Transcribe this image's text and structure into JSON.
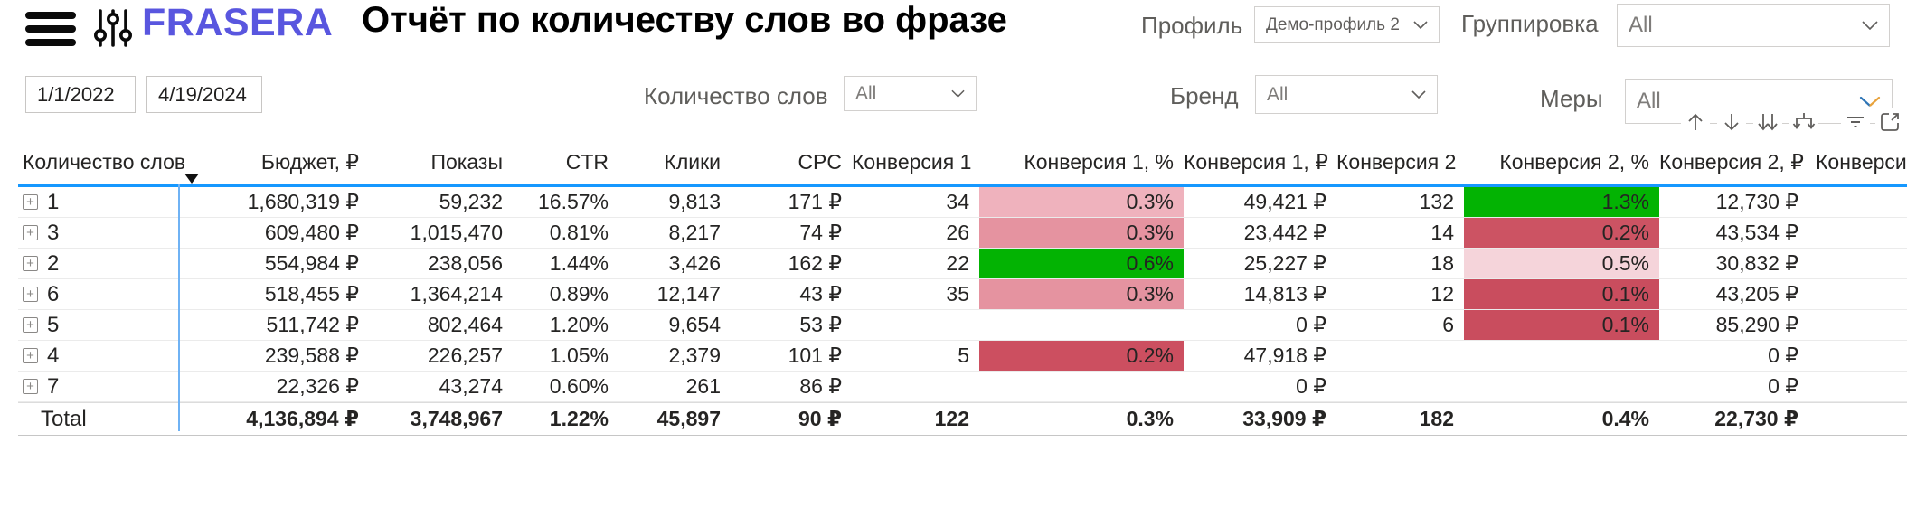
{
  "header": {
    "brand": "FRASERA",
    "title": "Отчёт по количеству слов во фразе",
    "profile": {
      "label": "Профиль",
      "value": "Демо-профиль 2"
    },
    "grouping": {
      "label": "Группировка",
      "value": "All"
    }
  },
  "filters": {
    "date_from": "1/1/2022",
    "date_to": "4/19/2024",
    "word_count": {
      "label": "Количество слов",
      "value": "All"
    },
    "brand": {
      "label": "Бренд",
      "value": "All"
    },
    "measures": {
      "label": "Меры",
      "value": "All"
    }
  },
  "toolbar": {
    "icons": [
      "drill-up",
      "drill-down",
      "expand-all-down",
      "go-to-next-level",
      "filters",
      "focus-mode"
    ]
  },
  "colors": {
    "accent_blue": "#1698FF",
    "brand_purple": "#5956DF",
    "green": "#03B303",
    "pink_light": "#EFB2BD",
    "pink_medium": "#E593A0",
    "red_dark": "#C94D5E"
  },
  "table": {
    "columns": [
      "Количество слов",
      "Бюджет, ₽",
      "Показы",
      "CTR",
      "Клики",
      "CPC",
      "Конверсия 1",
      "Конверсия 1, %",
      "Конверсия 1, ₽",
      "Конверсия 2",
      "Конверсия 2, %",
      "Конверсия 2, ₽",
      "Конверси"
    ],
    "rows": [
      {
        "cells": [
          "1",
          "1,680,319 ₽",
          "59,232",
          "16.57%",
          "9,813",
          "171 ₽",
          "34",
          "0.3%",
          "49,421 ₽",
          "132",
          "1.3%",
          "12,730 ₽",
          ""
        ],
        "bg": {
          "7": "#EFB2BD",
          "10": "#03B303"
        }
      },
      {
        "cells": [
          "3",
          "609,480 ₽",
          "1,015,470",
          "0.81%",
          "8,217",
          "74 ₽",
          "26",
          "0.3%",
          "23,442 ₽",
          "14",
          "0.2%",
          "43,534 ₽",
          ""
        ],
        "bg": {
          "7": "#E593A0",
          "10": "#CC5363"
        }
      },
      {
        "cells": [
          "2",
          "554,984 ₽",
          "238,056",
          "1.44%",
          "3,426",
          "162 ₽",
          "22",
          "0.6%",
          "25,227 ₽",
          "18",
          "0.5%",
          "30,832 ₽",
          ""
        ],
        "bg": {
          "7": "#03B303",
          "10": "#F5D4DA"
        }
      },
      {
        "cells": [
          "6",
          "518,455 ₽",
          "1,364,214",
          "0.89%",
          "12,147",
          "43 ₽",
          "35",
          "0.3%",
          "14,813 ₽",
          "12",
          "0.1%",
          "43,205 ₽",
          ""
        ],
        "bg": {
          "7": "#E593A0",
          "10": "#C94D5E"
        }
      },
      {
        "cells": [
          "5",
          "511,742 ₽",
          "802,464",
          "1.20%",
          "9,654",
          "53 ₽",
          "",
          "",
          "0 ₽",
          "6",
          "0.1%",
          "85,290 ₽",
          ""
        ],
        "bg": {
          "10": "#C94D5E"
        }
      },
      {
        "cells": [
          "4",
          "239,588 ₽",
          "226,257",
          "1.05%",
          "2,379",
          "101 ₽",
          "5",
          "0.2%",
          "47,918 ₽",
          "",
          "",
          "0 ₽",
          ""
        ],
        "bg": {
          "7": "#CC4F60"
        }
      },
      {
        "cells": [
          "7",
          "22,326 ₽",
          "43,274",
          "0.60%",
          "261",
          "86 ₽",
          "",
          "",
          "0 ₽",
          "",
          "",
          "0 ₽",
          ""
        ],
        "bg": {}
      }
    ],
    "total": {
      "cells": [
        "Total",
        "4,136,894 ₽",
        "3,748,967",
        "1.22%",
        "45,897",
        "90 ₽",
        "122",
        "0.3%",
        "33,909 ₽",
        "182",
        "0.4%",
        "22,730 ₽",
        ""
      ]
    }
  }
}
